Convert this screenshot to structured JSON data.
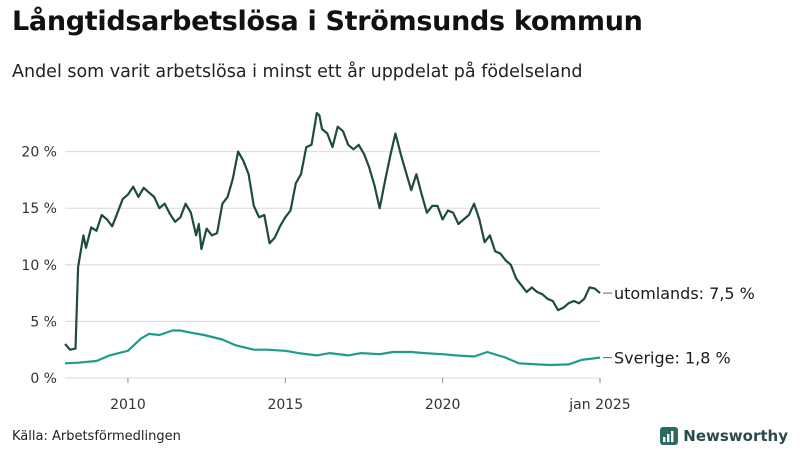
{
  "chart_data": {
    "type": "line",
    "title": "Långtidsarbetslösa i Strömsunds kommun",
    "subtitle": "Andel som varit arbetslösa i minst ett år uppdelat på födelseland",
    "source": "Källa: Arbetsförmedlingen",
    "brand": "Newsworthy",
    "xlim": [
      "2008-01",
      "2025-01"
    ],
    "ylim": [
      0,
      25
    ],
    "x_ticks": [
      {
        "date": "2010-01",
        "label": "2010"
      },
      {
        "date": "2015-01",
        "label": "2015"
      },
      {
        "date": "2020-01",
        "label": "2020"
      },
      {
        "date": "2025-01",
        "label": "jan 2025"
      }
    ],
    "y_ticks": [
      {
        "value": 0,
        "label": "0 %"
      },
      {
        "value": 5,
        "label": "5 %"
      },
      {
        "value": 10,
        "label": "10 %"
      },
      {
        "value": 15,
        "label": "15 %"
      },
      {
        "value": 20,
        "label": "20 %"
      }
    ],
    "grid": "horizontal",
    "colors": {
      "utomlands": "#1f4a40",
      "sverige": "#1e9c8c"
    },
    "series": [
      {
        "name": "utomlands",
        "end_label": "utomlands: 7,5 %",
        "color": "#1f4a40",
        "points": [
          [
            "2008-01",
            3.0
          ],
          [
            "2008-03",
            2.5
          ],
          [
            "2008-05",
            2.6
          ],
          [
            "2008-06",
            9.8
          ],
          [
            "2008-08",
            12.6
          ],
          [
            "2008-09",
            11.5
          ],
          [
            "2008-11",
            13.3
          ],
          [
            "2009-01",
            13.0
          ],
          [
            "2009-03",
            14.4
          ],
          [
            "2009-05",
            14.0
          ],
          [
            "2009-07",
            13.4
          ],
          [
            "2009-09",
            14.6
          ],
          [
            "2009-11",
            15.8
          ],
          [
            "2010-01",
            16.2
          ],
          [
            "2010-03",
            16.9
          ],
          [
            "2010-05",
            16.0
          ],
          [
            "2010-07",
            16.8
          ],
          [
            "2010-09",
            16.4
          ],
          [
            "2010-11",
            16.0
          ],
          [
            "2011-01",
            15.0
          ],
          [
            "2011-03",
            15.4
          ],
          [
            "2011-05",
            14.5
          ],
          [
            "2011-07",
            13.8
          ],
          [
            "2011-09",
            14.2
          ],
          [
            "2011-11",
            15.4
          ],
          [
            "2012-01",
            14.6
          ],
          [
            "2012-03",
            12.6
          ],
          [
            "2012-04",
            13.6
          ],
          [
            "2012-05",
            11.4
          ],
          [
            "2012-07",
            13.2
          ],
          [
            "2012-09",
            12.6
          ],
          [
            "2012-11",
            12.8
          ],
          [
            "2013-01",
            15.4
          ],
          [
            "2013-03",
            16.0
          ],
          [
            "2013-05",
            17.6
          ],
          [
            "2013-07",
            20.0
          ],
          [
            "2013-09",
            19.2
          ],
          [
            "2013-11",
            18.0
          ],
          [
            "2014-01",
            15.2
          ],
          [
            "2014-03",
            14.2
          ],
          [
            "2014-05",
            14.4
          ],
          [
            "2014-07",
            11.9
          ],
          [
            "2014-09",
            12.4
          ],
          [
            "2014-11",
            13.4
          ],
          [
            "2015-01",
            14.2
          ],
          [
            "2015-03",
            14.8
          ],
          [
            "2015-05",
            17.2
          ],
          [
            "2015-07",
            18.0
          ],
          [
            "2015-09",
            20.4
          ],
          [
            "2015-11",
            20.6
          ],
          [
            "2016-01",
            23.4
          ],
          [
            "2016-02",
            23.2
          ],
          [
            "2016-03",
            22.0
          ],
          [
            "2016-05",
            21.6
          ],
          [
            "2016-07",
            20.4
          ],
          [
            "2016-09",
            22.2
          ],
          [
            "2016-11",
            21.8
          ],
          [
            "2017-01",
            20.6
          ],
          [
            "2017-03",
            20.2
          ],
          [
            "2017-05",
            20.6
          ],
          [
            "2017-07",
            19.8
          ],
          [
            "2017-09",
            18.6
          ],
          [
            "2017-11",
            17.0
          ],
          [
            "2018-01",
            15.0
          ],
          [
            "2018-03",
            17.4
          ],
          [
            "2018-05",
            19.6
          ],
          [
            "2018-07",
            21.6
          ],
          [
            "2018-09",
            19.8
          ],
          [
            "2018-11",
            18.2
          ],
          [
            "2019-01",
            16.6
          ],
          [
            "2019-03",
            18.0
          ],
          [
            "2019-05",
            16.2
          ],
          [
            "2019-07",
            14.6
          ],
          [
            "2019-09",
            15.2
          ],
          [
            "2019-11",
            15.2
          ],
          [
            "2020-01",
            14.0
          ],
          [
            "2020-03",
            14.8
          ],
          [
            "2020-05",
            14.6
          ],
          [
            "2020-07",
            13.6
          ],
          [
            "2020-09",
            14.0
          ],
          [
            "2020-11",
            14.4
          ],
          [
            "2021-01",
            15.4
          ],
          [
            "2021-03",
            14.0
          ],
          [
            "2021-05",
            12.0
          ],
          [
            "2021-07",
            12.6
          ],
          [
            "2021-09",
            11.2
          ],
          [
            "2021-11",
            11.0
          ],
          [
            "2022-01",
            10.4
          ],
          [
            "2022-03",
            10.0
          ],
          [
            "2022-05",
            8.8
          ],
          [
            "2022-07",
            8.2
          ],
          [
            "2022-09",
            7.6
          ],
          [
            "2022-11",
            8.0
          ],
          [
            "2023-01",
            7.6
          ],
          [
            "2023-03",
            7.4
          ],
          [
            "2023-05",
            7.0
          ],
          [
            "2023-07",
            6.8
          ],
          [
            "2023-09",
            6.0
          ],
          [
            "2023-11",
            6.2
          ],
          [
            "2024-01",
            6.6
          ],
          [
            "2024-03",
            6.8
          ],
          [
            "2024-05",
            6.6
          ],
          [
            "2024-07",
            7.0
          ],
          [
            "2024-09",
            8.0
          ],
          [
            "2024-11",
            7.9
          ],
          [
            "2025-01",
            7.5
          ]
        ]
      },
      {
        "name": "Sverige",
        "end_label": "Sverige: 1,8 %",
        "color": "#1e9c8c",
        "points": [
          [
            "2008-01",
            1.3
          ],
          [
            "2008-06",
            1.35
          ],
          [
            "2009-01",
            1.5
          ],
          [
            "2009-06",
            2.0
          ],
          [
            "2010-01",
            2.4
          ],
          [
            "2010-06",
            3.5
          ],
          [
            "2010-09",
            3.9
          ],
          [
            "2011-01",
            3.8
          ],
          [
            "2011-06",
            4.2
          ],
          [
            "2011-09",
            4.2
          ],
          [
            "2012-01",
            4.0
          ],
          [
            "2012-06",
            3.8
          ],
          [
            "2013-01",
            3.4
          ],
          [
            "2013-06",
            2.9
          ],
          [
            "2014-01",
            2.5
          ],
          [
            "2014-06",
            2.5
          ],
          [
            "2015-01",
            2.4
          ],
          [
            "2015-06",
            2.2
          ],
          [
            "2016-01",
            2.0
          ],
          [
            "2016-06",
            2.2
          ],
          [
            "2017-01",
            2.0
          ],
          [
            "2017-06",
            2.2
          ],
          [
            "2018-01",
            2.1
          ],
          [
            "2018-06",
            2.3
          ],
          [
            "2019-01",
            2.3
          ],
          [
            "2019-06",
            2.2
          ],
          [
            "2020-01",
            2.1
          ],
          [
            "2020-06",
            2.0
          ],
          [
            "2021-01",
            1.9
          ],
          [
            "2021-06",
            2.3
          ],
          [
            "2022-01",
            1.8
          ],
          [
            "2022-06",
            1.3
          ],
          [
            "2023-01",
            1.2
          ],
          [
            "2023-06",
            1.15
          ],
          [
            "2024-01",
            1.2
          ],
          [
            "2024-06",
            1.6
          ],
          [
            "2025-01",
            1.8
          ]
        ]
      }
    ]
  }
}
